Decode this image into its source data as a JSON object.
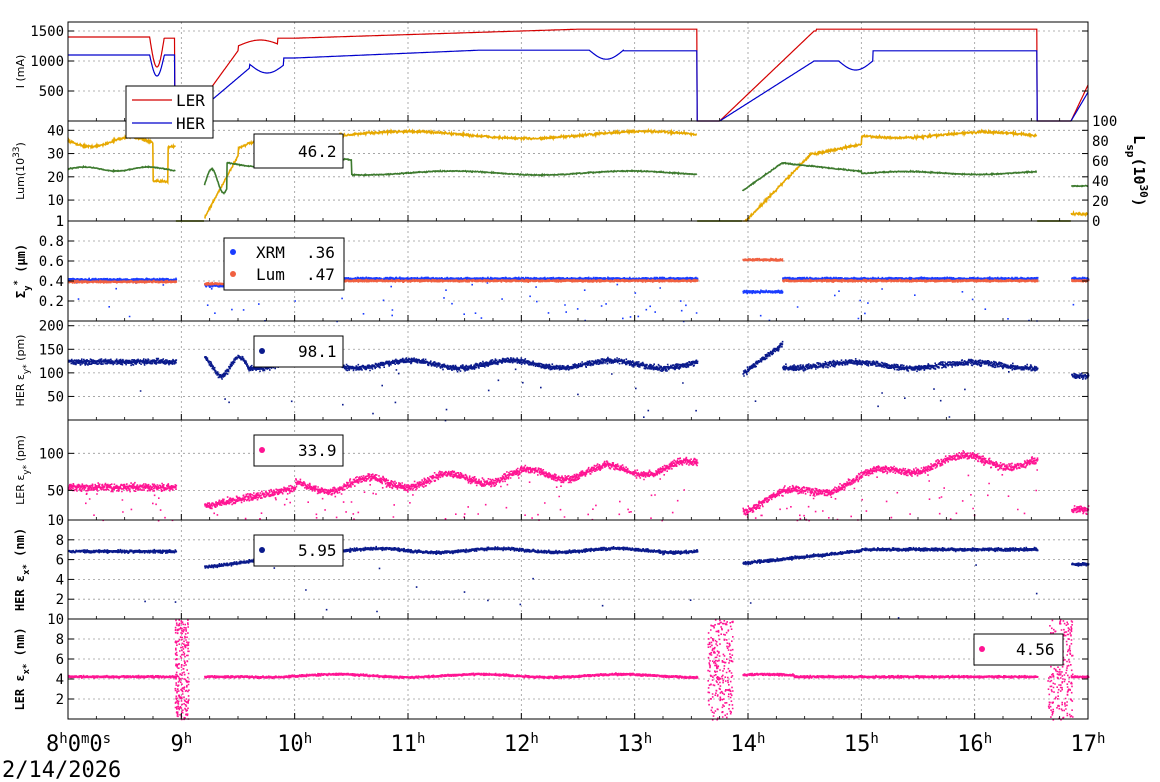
{
  "chart_data": [
    {
      "type": "line",
      "panel": "current",
      "ylabel": "I (mA)",
      "yticks": [
        "500",
        "1000",
        "1500"
      ],
      "ylim": [
        0,
        1650
      ],
      "series": [
        {
          "name": "LER",
          "color": "#d40000"
        },
        {
          "name": "HER",
          "color": "#0000cc"
        }
      ]
    },
    {
      "type": "line",
      "panel": "luminosity",
      "ylabel": "Lum(10",
      "ylabel_sup": "33",
      "ylabel_tail": ")",
      "yticks": [
        "1",
        "10",
        "20",
        "30",
        "40"
      ],
      "ylim": [
        1,
        44
      ],
      "y2label": "L",
      "y2label_sub": "sp",
      "y2label_mid": "(10",
      "y2label_sup": "30",
      "y2label_tail": ")",
      "y2ticks": [
        "0",
        "20",
        "40",
        "60",
        "80",
        "100"
      ],
      "y2lim": [
        0,
        100
      ],
      "readout": "46.2",
      "series": [
        {
          "name": "",
          "color": "#e6a800",
          "axis": "left"
        },
        {
          "name": "",
          "color": "#3d7a2e",
          "axis": "right"
        }
      ]
    },
    {
      "type": "scatter",
      "panel": "sigma_y",
      "ylabel": "Σ",
      "ylabel_sub": "y",
      "ylabel_sup": "*",
      "ylabel_tail": " (μm)",
      "yticks": [
        "0.2",
        "0.4",
        "0.6",
        "0.8",
        "1"
      ],
      "ylim": [
        0,
        1
      ],
      "legend": [
        {
          "name": "XRM",
          "value": ".36",
          "color": "#1a3cff"
        },
        {
          "name": "Lum",
          "value": ".47",
          "color": "#f06040"
        }
      ]
    },
    {
      "type": "scatter",
      "panel": "her_eps_y",
      "ylabel": "HER ε",
      "ylabel_sub": "y*",
      "ylabel_tail": " (pm)",
      "yticks": [
        "50",
        "100",
        "150",
        "200"
      ],
      "ylim": [
        0,
        210
      ],
      "readout": "98.1",
      "color": "#0a1a8c"
    },
    {
      "type": "scatter",
      "panel": "ler_eps_y",
      "ylabel": "LER ε",
      "ylabel_sub": "y*",
      "ylabel_tail": " (pm)",
      "yticks": [
        "10",
        "50",
        "100"
      ],
      "ylim": [
        10,
        145
      ],
      "readout": "33.9",
      "color": "#ff1493"
    },
    {
      "type": "scatter",
      "panel": "her_eps_x",
      "ylabel": "HER ε",
      "ylabel_sub": "x*",
      "ylabel_tail": " (nm)",
      "yticks": [
        "2",
        "4",
        "6",
        "8"
      ],
      "ylim": [
        0,
        10
      ],
      "readout": "5.95",
      "color": "#0a1a8c"
    },
    {
      "type": "scatter",
      "panel": "ler_eps_x",
      "ylabel": "LER ε",
      "ylabel_sub": "x*",
      "ylabel_tail": " (nm)",
      "yticks": [
        "2",
        "4",
        "6",
        "8",
        "10"
      ],
      "ylim": [
        0,
        10
      ],
      "readout": "4.56",
      "color": "#ff1493"
    }
  ],
  "xaxis": {
    "xlim": [
      8,
      17
    ],
    "ticks": [
      {
        "v": 8,
        "base": "8",
        "parts": [
          [
            "h",
            "0"
          ],
          [
            "m",
            "0"
          ],
          [
            "s",
            ""
          ]
        ]
      },
      {
        "v": 9,
        "base": "9",
        "sup": "h"
      },
      {
        "v": 10,
        "base": "10",
        "sup": "h"
      },
      {
        "v": 11,
        "base": "11",
        "sup": "h"
      },
      {
        "v": 12,
        "base": "12",
        "sup": "h"
      },
      {
        "v": 13,
        "base": "13",
        "sup": "h"
      },
      {
        "v": 14,
        "base": "14",
        "sup": "h"
      },
      {
        "v": 15,
        "base": "15",
        "sup": "h"
      },
      {
        "v": 16,
        "base": "16",
        "sup": "h"
      },
      {
        "v": 17,
        "base": "17",
        "sup": "h"
      }
    ],
    "date": "2/14/2026"
  }
}
